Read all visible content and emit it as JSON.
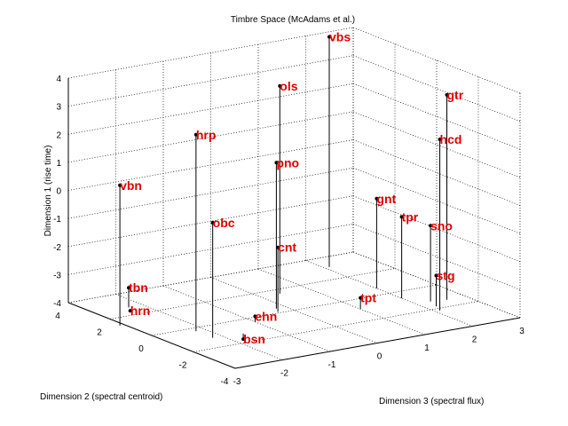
{
  "chart_data": {
    "type": "scatter",
    "title": "Timbre Space (McAdams et al.)",
    "xlabel": "Dimension 2 (spectral centroid)",
    "ylabel": "Dimension 3 (spectral flux)",
    "zlabel": "Dimension 1 (rise time)",
    "xlim": [
      -4,
      4
    ],
    "ylim": [
      -3,
      3
    ],
    "zlim": [
      -4,
      4
    ],
    "x_ticks": [
      "4",
      "2",
      "0",
      "-2",
      "-4"
    ],
    "y_ticks": [
      "-3",
      "-2",
      "-1",
      "0",
      "1",
      "2",
      "3"
    ],
    "z_ticks": [
      "4",
      "3",
      "2",
      "1",
      "0",
      "-1",
      "-2",
      "-3",
      "-4"
    ],
    "grid": true,
    "point_color": "#e00000",
    "points": [
      {
        "label": "vbs",
        "x": 3.1,
        "y": 2.1,
        "z": 4.2
      },
      {
        "label": "hrp",
        "x": -0.3,
        "y": -2.2,
        "z": 3.0
      },
      {
        "label": "ols",
        "x": 1.6,
        "y": 0.4,
        "z": 3.4
      },
      {
        "label": "gtr",
        "x": -1.4,
        "y": 2.6,
        "z": 3.3
      },
      {
        "label": "hcd",
        "x": -2.2,
        "y": 2.1,
        "z": 2.1
      },
      {
        "label": "pno",
        "x": 0.4,
        "y": -0.2,
        "z": 1.2
      },
      {
        "label": "vbn",
        "x": 1.3,
        "y": -3.1,
        "z": 1.0
      },
      {
        "label": "obc",
        "x": -1.1,
        "y": -2.2,
        "z": 0.1
      },
      {
        "label": "gnt",
        "x": 0.6,
        "y": 2.0,
        "z": -0.8
      },
      {
        "label": "tpr",
        "x": -0.6,
        "y": 2.0,
        "z": -1.1
      },
      {
        "label": "sno",
        "x": -1.3,
        "y": 2.3,
        "z": -1.3
      },
      {
        "label": "cnt",
        "x": 0.1,
        "y": -0.3,
        "z": -1.7
      },
      {
        "label": "stg",
        "x": -1.8,
        "y": 2.2,
        "z": -2.9
      },
      {
        "label": "tbn",
        "x": 2.7,
        "y": -2.3,
        "z": -3.3
      },
      {
        "label": "tpt",
        "x": -0.9,
        "y": 1.0,
        "z": -3.6
      },
      {
        "label": "ehn",
        "x": -0.4,
        "y": -1.0,
        "z": -3.8
      },
      {
        "label": "hrn",
        "x": 2.4,
        "y": -2.4,
        "z": -4.0
      },
      {
        "label": "bsn",
        "x": -1.2,
        "y": -1.6,
        "z": -4.2
      }
    ]
  }
}
